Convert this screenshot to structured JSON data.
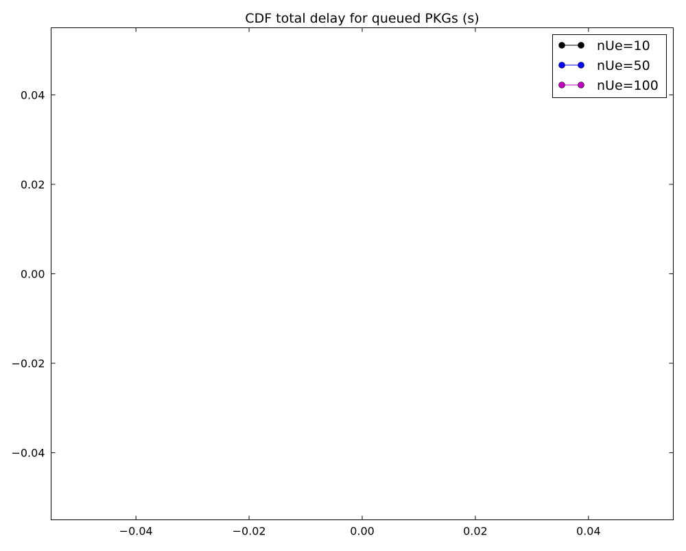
{
  "chart_data": {
    "type": "line",
    "title": "CDF total delay for queued PKGs (s)",
    "xlabel": "",
    "ylabel": "",
    "xlim": [
      -0.055,
      0.055
    ],
    "ylim": [
      -0.055,
      0.055
    ],
    "x_ticks": [
      -0.04,
      -0.02,
      0.0,
      0.02,
      0.04
    ],
    "y_ticks": [
      -0.04,
      -0.02,
      0.0,
      0.02,
      0.04
    ],
    "x_tick_labels": [
      "−0.04",
      "−0.02",
      "0.00",
      "0.02",
      "0.04"
    ],
    "y_tick_labels": [
      "−0.04",
      "−0.02",
      "0.00",
      "0.02",
      "0.04"
    ],
    "grid": false,
    "legend_position": "top-right",
    "series": [
      {
        "name": "nUe=10",
        "color": "#000000",
        "marker": "circle",
        "x": [],
        "y": []
      },
      {
        "name": "nUe=50",
        "color": "#0000ff",
        "marker": "circle",
        "x": [],
        "y": []
      },
      {
        "name": "nUe=100",
        "color": "#bf00bf",
        "marker": "circle",
        "x": [],
        "y": []
      }
    ]
  }
}
